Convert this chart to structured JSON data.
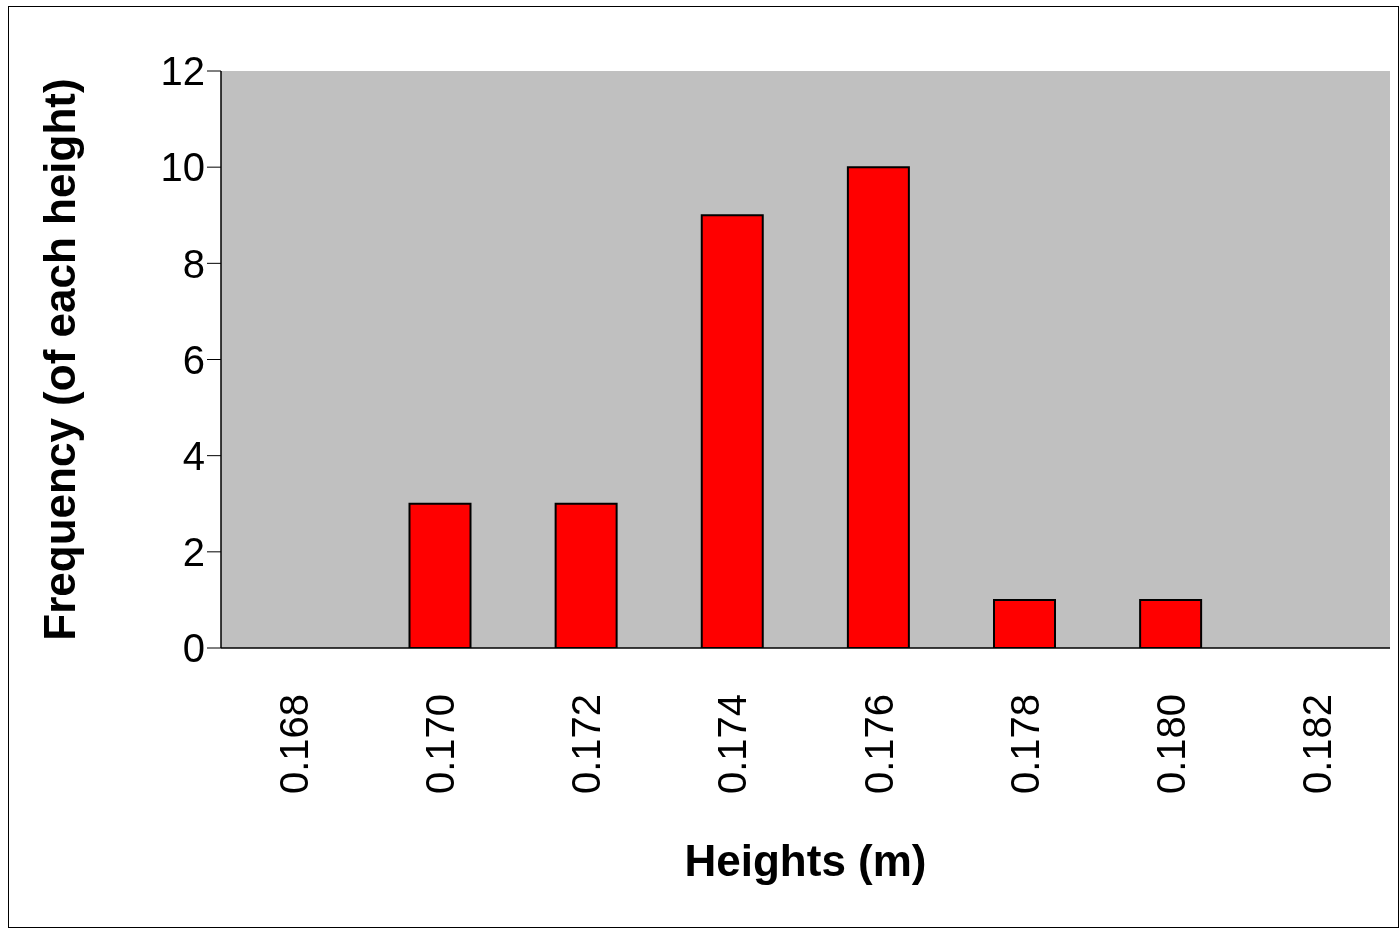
{
  "chart_data": {
    "type": "bar",
    "xlabel": "Heights (m)",
    "ylabel": "Frequency (of each height)",
    "categories": [
      "0.168",
      "0.170",
      "0.172",
      "0.174",
      "0.176",
      "0.178",
      "0.180",
      "0.182"
    ],
    "values": [
      0,
      3,
      3,
      9,
      10,
      1,
      1,
      0
    ],
    "color": "#ff0000",
    "ylim": [
      0,
      12
    ],
    "yticks": [
      0,
      2,
      4,
      6,
      8,
      10,
      12
    ],
    "grid": false
  }
}
